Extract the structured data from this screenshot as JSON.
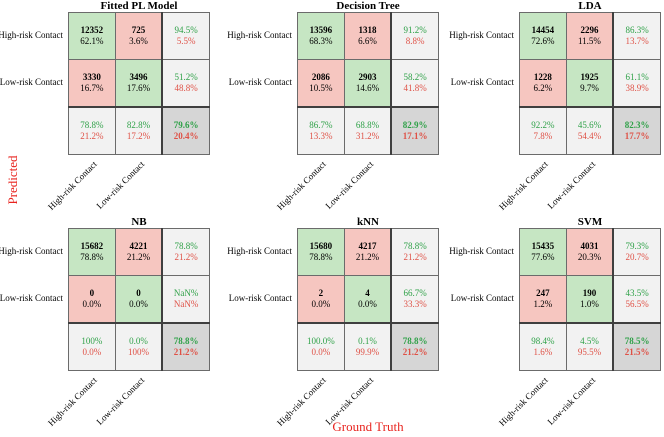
{
  "figure": {
    "ylabel": "Predicted",
    "xlabel": "Ground Truth",
    "axis_label_color": "#e8241f",
    "colors": {
      "diagonal_cell": "#c6e6c3",
      "off_diagonal_cell": "#f6c6c0",
      "summary_cell": "#f2f2f2",
      "corner_cell": "#d6d6d6",
      "good_text": "#2fa148",
      "bad_text": "#df5146",
      "border": "#6b6b6b"
    }
  },
  "chart_data": [
    {
      "type": "heatmap",
      "title": "Fitted PL Model",
      "classes": [
        "High-risk Contact",
        "Low-risk Contact"
      ],
      "counts": [
        [
          12352,
          725
        ],
        [
          3330,
          3496
        ]
      ],
      "cell_pct": [
        [
          "62.1%",
          "3.6%"
        ],
        [
          "16.7%",
          "17.6%"
        ]
      ],
      "row_summary": [
        [
          "94.5%",
          "5.5%"
        ],
        [
          "51.2%",
          "48.8%"
        ]
      ],
      "col_summary": [
        [
          "78.8%",
          "21.2%"
        ],
        [
          "82.8%",
          "17.2%"
        ]
      ],
      "overall": [
        "79.6%",
        "20.4%"
      ]
    },
    {
      "type": "heatmap",
      "title": "Decision Tree",
      "classes": [
        "High-risk Contact",
        "Low-risk Contact"
      ],
      "counts": [
        [
          13596,
          1318
        ],
        [
          2086,
          2903
        ]
      ],
      "cell_pct": [
        [
          "68.3%",
          "6.6%"
        ],
        [
          "10.5%",
          "14.6%"
        ]
      ],
      "row_summary": [
        [
          "91.2%",
          "8.8%"
        ],
        [
          "58.2%",
          "41.8%"
        ]
      ],
      "col_summary": [
        [
          "86.7%",
          "13.3%"
        ],
        [
          "68.8%",
          "31.2%"
        ]
      ],
      "overall": [
        "82.9%",
        "17.1%"
      ]
    },
    {
      "type": "heatmap",
      "title": "LDA",
      "classes": [
        "High-risk Contact",
        "Low-risk Contact"
      ],
      "counts": [
        [
          14454,
          2296
        ],
        [
          1228,
          1925
        ]
      ],
      "cell_pct": [
        [
          "72.6%",
          "11.5%"
        ],
        [
          "6.2%",
          "9.7%"
        ]
      ],
      "row_summary": [
        [
          "86.3%",
          "13.7%"
        ],
        [
          "61.1%",
          "38.9%"
        ]
      ],
      "col_summary": [
        [
          "92.2%",
          "7.8%"
        ],
        [
          "45.6%",
          "54.4%"
        ]
      ],
      "overall": [
        "82.3%",
        "17.7%"
      ]
    },
    {
      "type": "heatmap",
      "title": "NB",
      "classes": [
        "High-risk Contact",
        "Low-risk Contact"
      ],
      "counts": [
        [
          15682,
          4221
        ],
        [
          0,
          0
        ]
      ],
      "cell_pct": [
        [
          "78.8%",
          "21.2%"
        ],
        [
          "0.0%",
          "0.0%"
        ]
      ],
      "row_summary": [
        [
          "78.8%",
          "21.2%"
        ],
        [
          "NaN%",
          "NaN%"
        ]
      ],
      "col_summary": [
        [
          "100%",
          "0.0%"
        ],
        [
          "0.0%",
          "100%"
        ]
      ],
      "overall": [
        "78.8%",
        "21.2%"
      ]
    },
    {
      "type": "heatmap",
      "title": "kNN",
      "classes": [
        "High-risk Contact",
        "Low-risk Contact"
      ],
      "counts": [
        [
          15680,
          4217
        ],
        [
          2,
          4
        ]
      ],
      "cell_pct": [
        [
          "78.8%",
          "21.2%"
        ],
        [
          "0.0%",
          "0.0%"
        ]
      ],
      "row_summary": [
        [
          "78.8%",
          "21.2%"
        ],
        [
          "66.7%",
          "33.3%"
        ]
      ],
      "col_summary": [
        [
          "100.0%",
          "0.0%"
        ],
        [
          "0.1%",
          "99.9%"
        ]
      ],
      "overall": [
        "78.8%",
        "21.2%"
      ]
    },
    {
      "type": "heatmap",
      "title": "SVM",
      "classes": [
        "High-risk Contact",
        "Low-risk Contact"
      ],
      "counts": [
        [
          15435,
          4031
        ],
        [
          247,
          190
        ]
      ],
      "cell_pct": [
        [
          "77.6%",
          "20.3%"
        ],
        [
          "1.2%",
          "1.0%"
        ]
      ],
      "row_summary": [
        [
          "79.3%",
          "20.7%"
        ],
        [
          "43.5%",
          "56.5%"
        ]
      ],
      "col_summary": [
        [
          "98.4%",
          "1.6%"
        ],
        [
          "4.5%",
          "95.5%"
        ]
      ],
      "overall": [
        "78.5%",
        "21.5%"
      ]
    }
  ]
}
